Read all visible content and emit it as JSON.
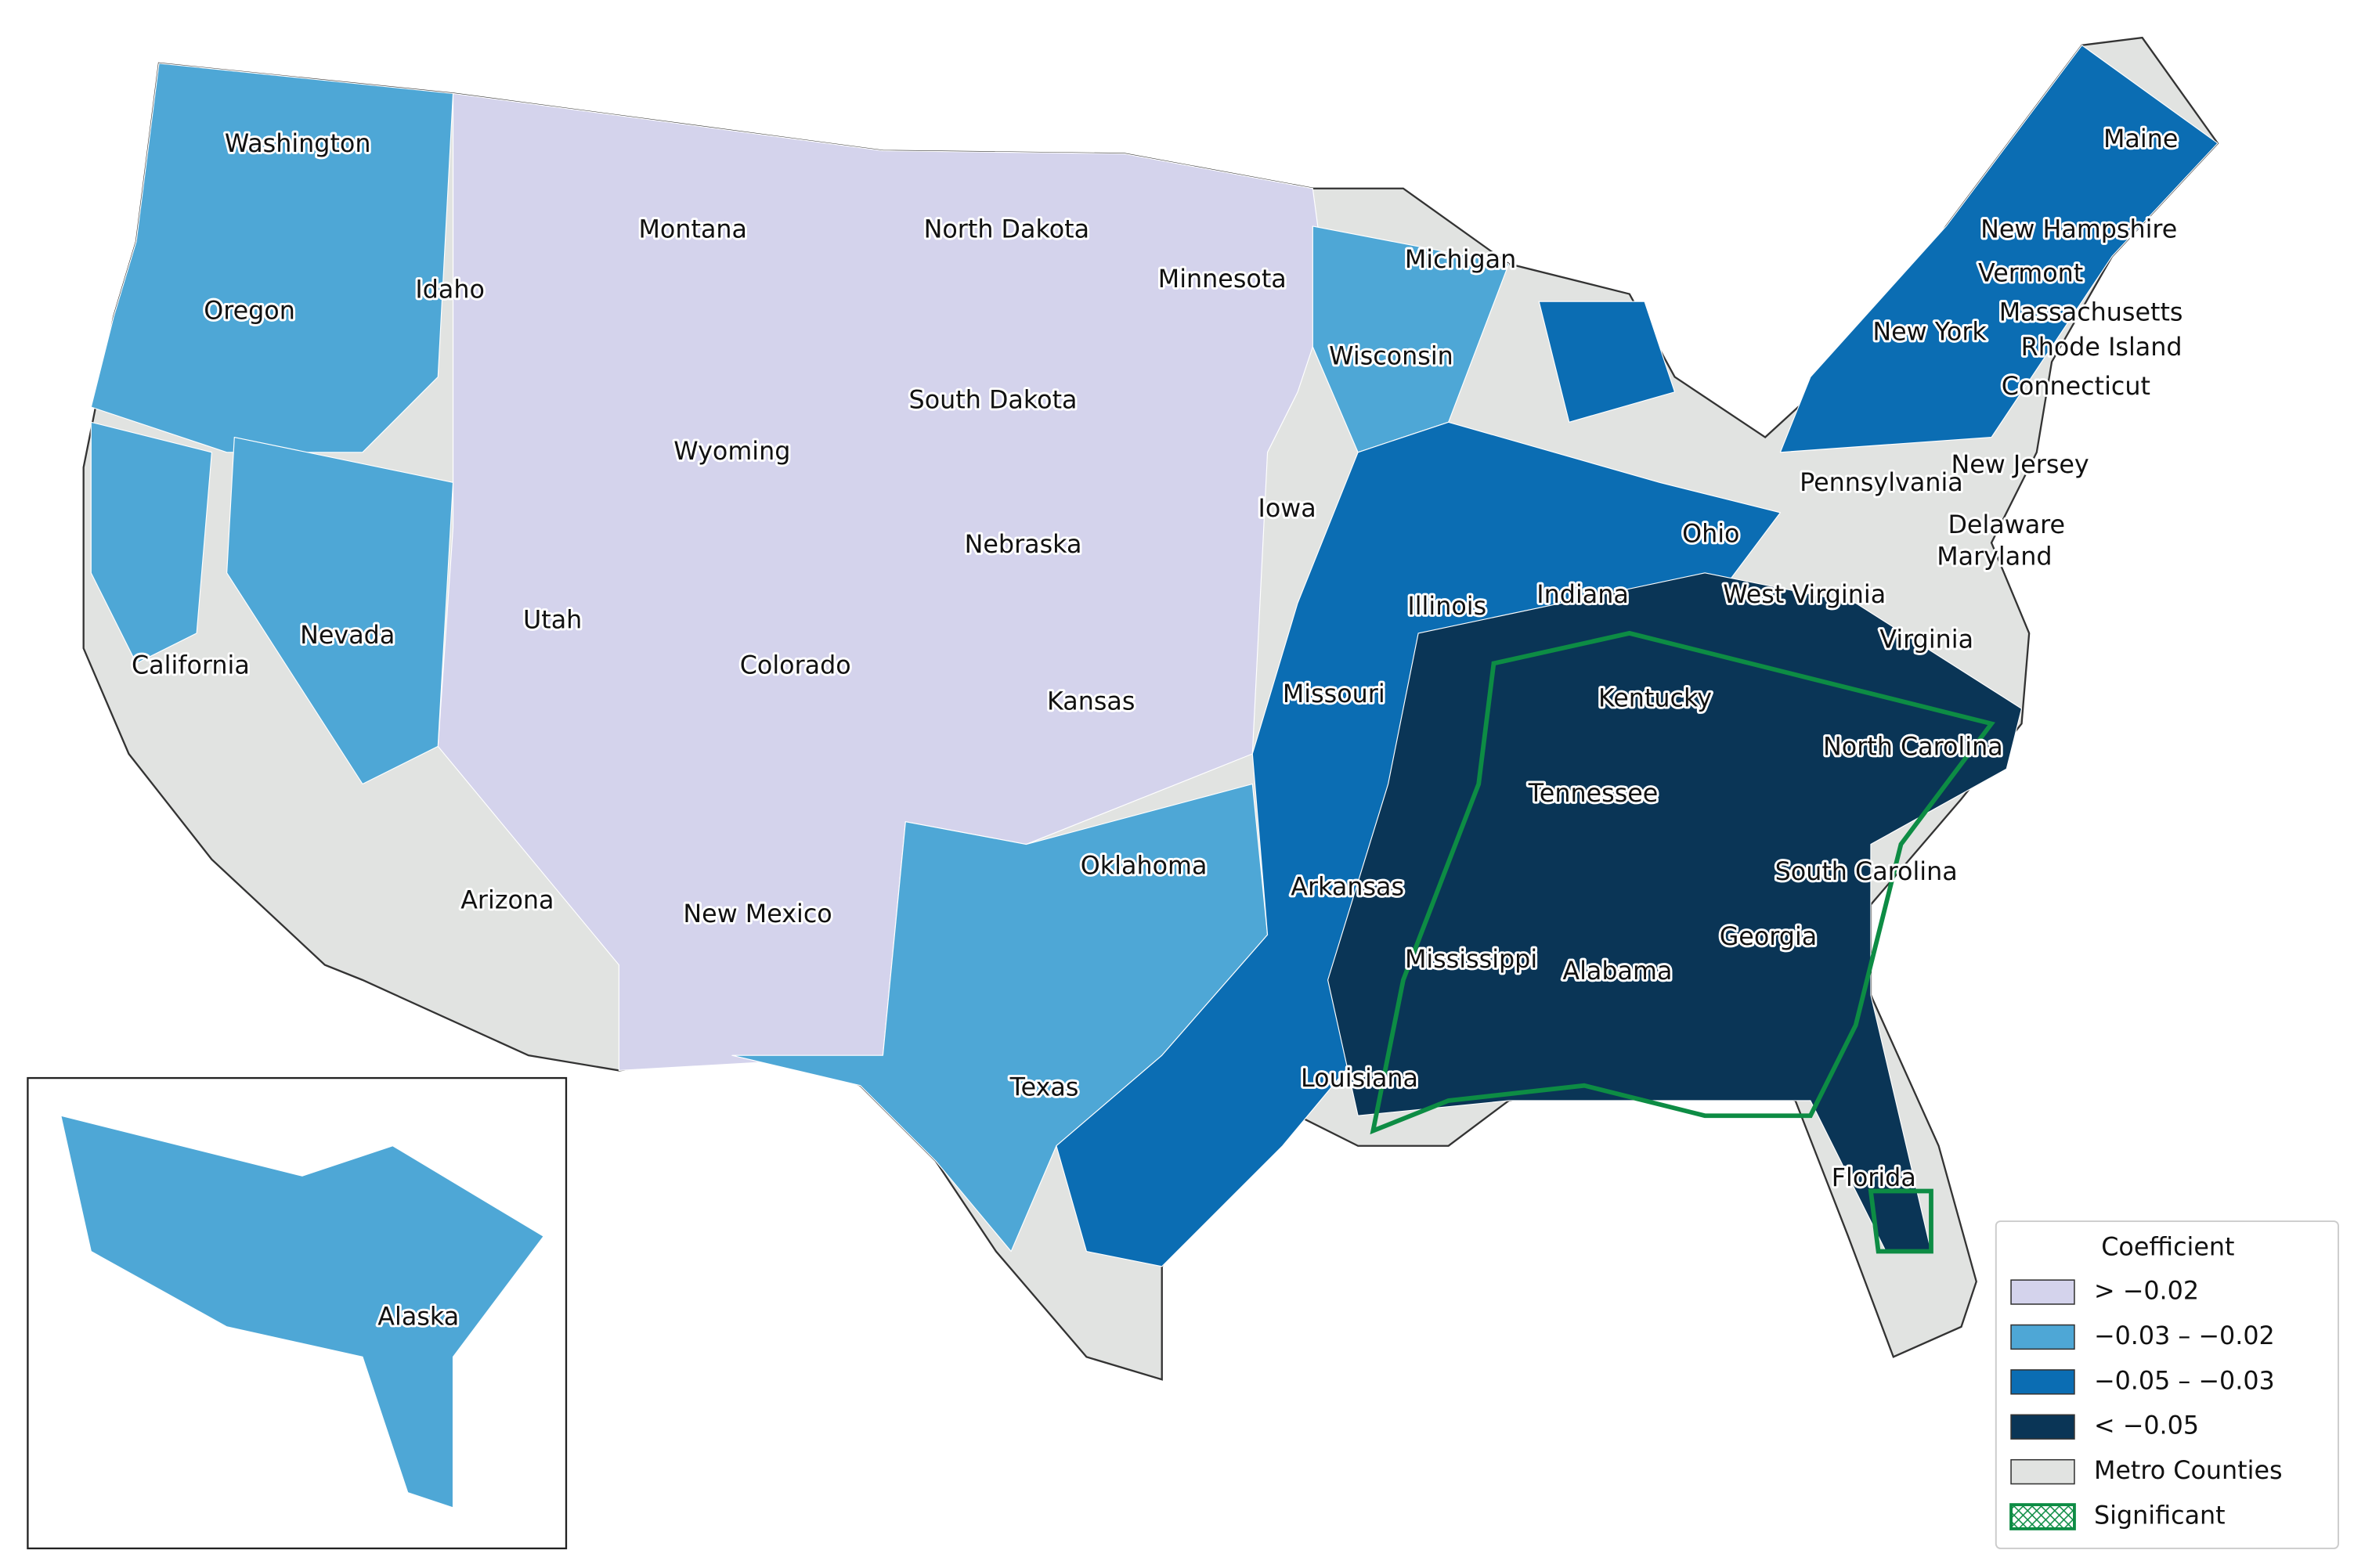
{
  "map": {
    "states": [
      "Washington",
      "Oregon",
      "California",
      "Nevada",
      "Idaho",
      "Montana",
      "Wyoming",
      "Utah",
      "Arizona",
      "Colorado",
      "New Mexico",
      "North Dakota",
      "South Dakota",
      "Nebraska",
      "Kansas",
      "Oklahoma",
      "Texas",
      "Minnesota",
      "Iowa",
      "Missouri",
      "Arkansas",
      "Louisiana",
      "Wisconsin",
      "Michigan",
      "Illinois",
      "Indiana",
      "Ohio",
      "Kentucky",
      "Tennessee",
      "Mississippi",
      "Alabama",
      "Georgia",
      "Florida",
      "South Carolina",
      "North Carolina",
      "Virginia",
      "West Virginia",
      "Maryland",
      "Delaware",
      "Pennsylvania",
      "New Jersey",
      "New York",
      "Connecticut",
      "Rhode Island",
      "Massachusetts",
      "Vermont",
      "New Hampshire",
      "Maine",
      "Alaska"
    ],
    "legend": {
      "title": "Coefficient",
      "items": [
        {
          "label": "> −0.02",
          "color": "#d4d3ec"
        },
        {
          "label": "−0.03 – −0.02",
          "color": "#4ea7d6"
        },
        {
          "label": "−0.05 – −0.03",
          "color": "#0b6db3"
        },
        {
          "label": "< −0.05",
          "color": "#0a3556"
        },
        {
          "label": "Metro Counties",
          "color": "#e1e3e1"
        },
        {
          "label": "Significant",
          "color": "#0d8c44"
        }
      ]
    }
  }
}
